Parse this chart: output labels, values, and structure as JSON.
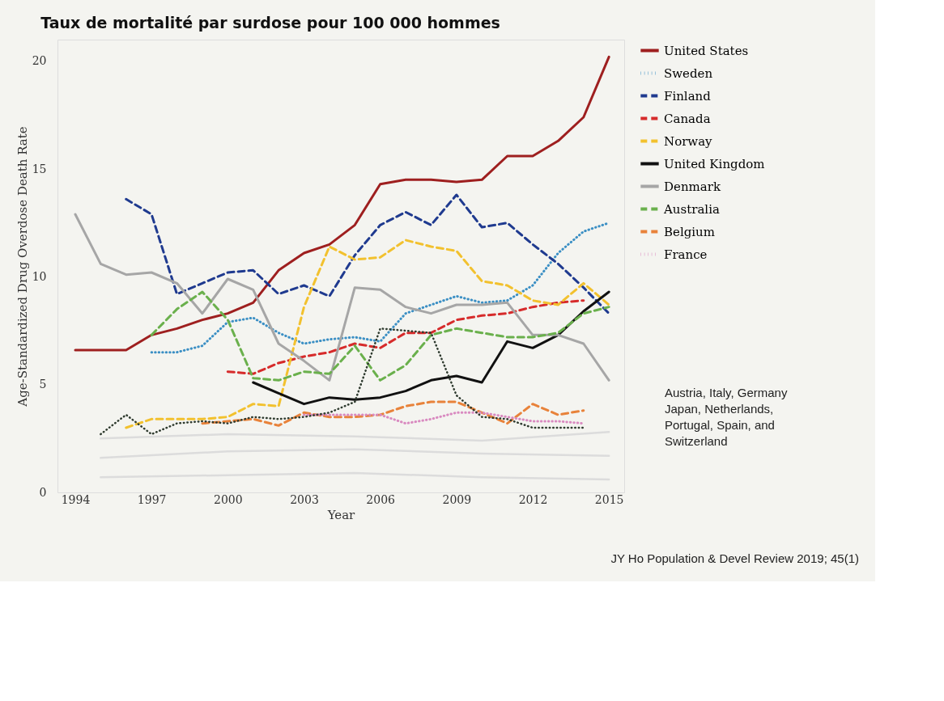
{
  "chart_data": {
    "type": "line",
    "title": "Taux de mortalité par surdose pour 100 000 hommes",
    "xlabel": "Year",
    "ylabel": "Age-Standardized Drug Overdose Death Rate",
    "xlim": [
      1993.3,
      2015.6
    ],
    "xticks": [
      1994,
      1997,
      2000,
      2003,
      2006,
      2009,
      2012,
      2015
    ],
    "ylim": [
      0,
      21
    ],
    "yticks": [
      0,
      5,
      10,
      15,
      20
    ],
    "grid": false,
    "legend": "right",
    "series": [
      {
        "name": "United States",
        "color": "#9e1f1f",
        "line_style": "solid",
        "x": [
          1994,
          1995,
          1996,
          1997,
          1998,
          1999,
          2000,
          2001,
          2002,
          2003,
          2004,
          2005,
          2006,
          2007,
          2008,
          2009,
          2010,
          2011,
          2012,
          2013,
          2014,
          2015
        ],
        "values": [
          6.6,
          6.6,
          6.6,
          7.3,
          7.6,
          8.0,
          8.3,
          8.8,
          10.3,
          11.1,
          11.5,
          12.4,
          14.3,
          14.5,
          14.5,
          14.4,
          14.5,
          15.6,
          15.6,
          16.3,
          17.4,
          20.2
        ]
      },
      {
        "name": "Sweden",
        "color": "#3b8fc4",
        "line_style": "dotted",
        "x": [
          1997,
          1998,
          1999,
          2000,
          2001,
          2002,
          2003,
          2004,
          2005,
          2006,
          2007,
          2008,
          2009,
          2010,
          2011,
          2012,
          2013,
          2014,
          2015
        ],
        "values": [
          6.5,
          6.5,
          6.8,
          7.9,
          8.1,
          7.4,
          6.9,
          7.1,
          7.2,
          7.0,
          8.3,
          8.7,
          9.1,
          8.8,
          8.9,
          9.6,
          11.1,
          12.1,
          12.5
        ]
      },
      {
        "name": "Finland",
        "color": "#1f3a8f",
        "line_style": "dashed",
        "x": [
          1996,
          1997,
          1998,
          1999,
          2000,
          2001,
          2002,
          2003,
          2004,
          2005,
          2006,
          2007,
          2008,
          2009,
          2010,
          2011,
          2012,
          2013,
          2014,
          2015
        ],
        "values": [
          13.6,
          12.9,
          9.2,
          9.7,
          10.2,
          10.3,
          9.2,
          9.6,
          9.1,
          11.0,
          12.4,
          13.0,
          12.4,
          13.8,
          12.3,
          12.5,
          11.5,
          10.6,
          9.5,
          8.3
        ]
      },
      {
        "name": "Canada",
        "color": "#d62b2b",
        "line_style": "dashed",
        "x": [
          2000,
          2001,
          2002,
          2003,
          2004,
          2005,
          2006,
          2007,
          2008,
          2009,
          2010,
          2011,
          2012,
          2013,
          2014
        ],
        "values": [
          5.6,
          5.5,
          6.0,
          6.3,
          6.5,
          6.9,
          6.7,
          7.4,
          7.4,
          8.0,
          8.2,
          8.3,
          8.6,
          8.8,
          8.9
        ]
      },
      {
        "name": "Norway",
        "color": "#f2c12e",
        "line_style": "dashed",
        "x": [
          1996,
          1997,
          1998,
          1999,
          2000,
          2001,
          2002,
          2003,
          2004,
          2005,
          2006,
          2007,
          2008,
          2009,
          2010,
          2011,
          2012,
          2013,
          2014,
          2015
        ],
        "values": [
          3.0,
          3.4,
          3.4,
          3.4,
          3.5,
          4.1,
          4.0,
          8.6,
          11.4,
          10.8,
          10.9,
          11.7,
          11.4,
          11.2,
          9.8,
          9.6,
          8.9,
          8.7,
          9.7,
          8.7
        ]
      },
      {
        "name": "United Kingdom",
        "color": "#111111",
        "line_style": "solid",
        "x": [
          2001,
          2002,
          2003,
          2004,
          2005,
          2006,
          2007,
          2008,
          2009,
          2010,
          2011,
          2012,
          2013,
          2014,
          2015
        ],
        "values": [
          5.1,
          4.6,
          4.1,
          4.4,
          4.3,
          4.4,
          4.7,
          5.2,
          5.4,
          5.1,
          7.0,
          6.7,
          7.3,
          8.4,
          9.3
        ]
      },
      {
        "name": "Denmark",
        "color": "#a6a6a6",
        "line_style": "solid",
        "x": [
          1994,
          1995,
          1996,
          1997,
          1998,
          1999,
          2000,
          2001,
          2002,
          2003,
          2004,
          2005,
          2006,
          2007,
          2008,
          2009,
          2010,
          2011,
          2012,
          2013,
          2014,
          2015
        ],
        "values": [
          12.9,
          10.6,
          10.1,
          10.2,
          9.7,
          8.3,
          9.9,
          9.4,
          6.9,
          6.1,
          5.2,
          9.5,
          9.4,
          8.6,
          8.3,
          8.7,
          8.7,
          8.8,
          7.3,
          7.3,
          6.9,
          5.2
        ]
      },
      {
        "name": "Australia",
        "color": "#6ab04c",
        "line_style": "dashed",
        "x": [
          1997,
          1998,
          1999,
          2000,
          2001,
          2002,
          2003,
          2004,
          2005,
          2006,
          2007,
          2008,
          2009,
          2010,
          2011,
          2012,
          2013,
          2014,
          2015
        ],
        "values": [
          7.3,
          8.5,
          9.3,
          8.0,
          5.3,
          5.2,
          5.6,
          5.5,
          6.8,
          5.2,
          5.9,
          7.3,
          7.6,
          7.4,
          7.2,
          7.2,
          7.4,
          8.3,
          8.6
        ]
      },
      {
        "name": "Belgium",
        "color": "#e8823a",
        "line_style": "dashed",
        "x": [
          1999,
          2000,
          2001,
          2002,
          2003,
          2004,
          2005,
          2006,
          2007,
          2008,
          2009,
          2010,
          2011,
          2012,
          2013,
          2014
        ],
        "values": [
          3.2,
          3.3,
          3.4,
          3.1,
          3.7,
          3.5,
          3.5,
          3.6,
          4.0,
          4.2,
          4.2,
          3.7,
          3.2,
          4.1,
          3.6,
          3.8
        ]
      },
      {
        "name": "France",
        "color": "#d98ac0",
        "line_style": "dotted",
        "x": [
          2003,
          2004,
          2005,
          2006,
          2007,
          2008,
          2009,
          2010,
          2011,
          2012,
          2013,
          2014
        ],
        "values": [
          3.6,
          3.6,
          3.6,
          3.6,
          3.2,
          3.4,
          3.7,
          3.7,
          3.5,
          3.3,
          3.3,
          3.2
        ]
      },
      {
        "color": "#2f3b2f",
        "line_style": "dotted",
        "x": [
          1995,
          1996,
          1997,
          1998,
          1999,
          2000,
          2001,
          2002,
          2003,
          2004,
          2005,
          2006,
          2007,
          2008,
          2009,
          2010,
          2011,
          2012,
          2013,
          2014
        ],
        "values": [
          2.7,
          3.6,
          2.7,
          3.2,
          3.3,
          3.2,
          3.5,
          3.4,
          3.5,
          3.7,
          4.2,
          7.6,
          7.5,
          7.4,
          4.5,
          3.5,
          3.4,
          3.0,
          3.0,
          3.0
        ]
      },
      {
        "color": "#dcdcdc",
        "line_style": "solid",
        "x": [
          1995,
          2000,
          2005,
          2010,
          2015
        ],
        "values": [
          2.5,
          2.7,
          2.6,
          2.4,
          2.8
        ]
      },
      {
        "color": "#dcdcdc",
        "line_style": "solid",
        "x": [
          1995,
          2000,
          2005,
          2010,
          2015
        ],
        "values": [
          1.6,
          1.9,
          2.0,
          1.8,
          1.7
        ]
      },
      {
        "color": "#dcdcdc",
        "line_style": "solid",
        "x": [
          1995,
          2000,
          2005,
          2010,
          2015
        ],
        "values": [
          0.7,
          0.8,
          0.9,
          0.7,
          0.6
        ]
      }
    ],
    "annotations": [
      "Austria, Italy, Germany Japan, Netherlands, Portugal, Spain, and Switzerland",
      "JY Ho Population & Devel Review 2019; 45(1)"
    ]
  }
}
